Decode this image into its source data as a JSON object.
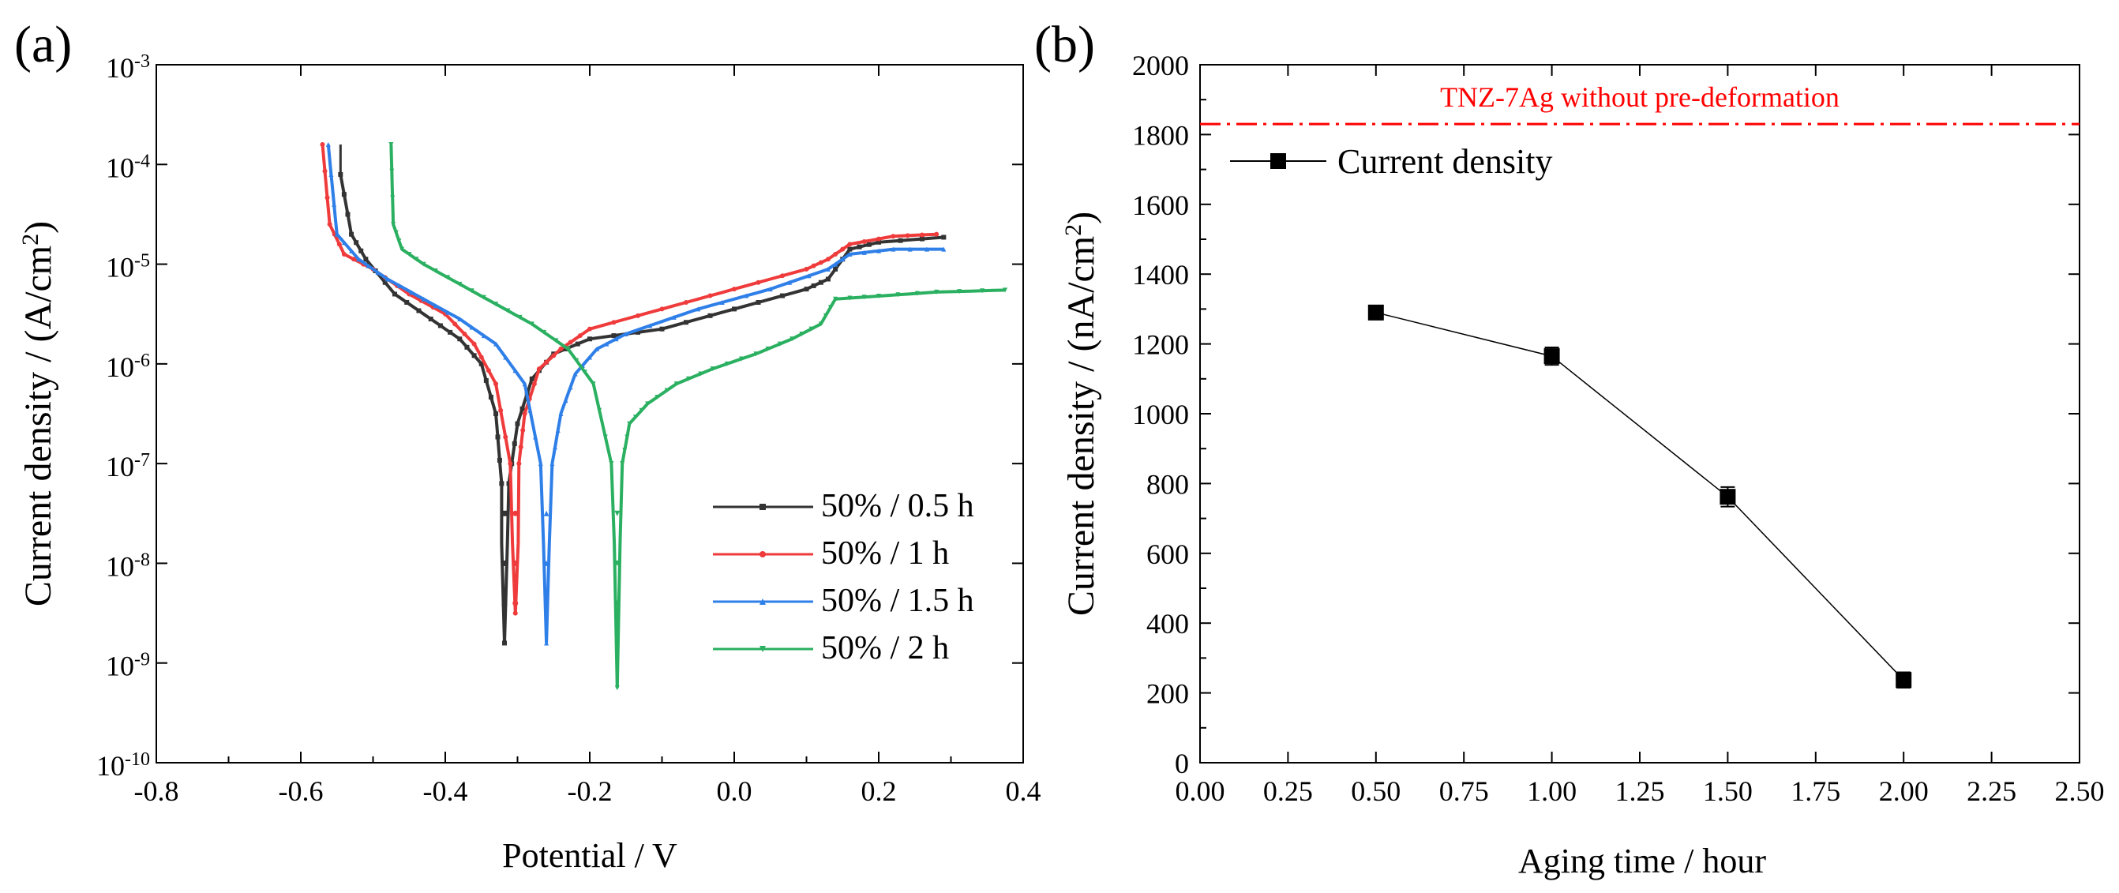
{
  "panels": {
    "a": {
      "label": "(a)"
    },
    "b": {
      "label": "(b)"
    }
  },
  "colors": {
    "black": "#333333",
    "red": "#ef3b3b",
    "blue": "#2f7fe8",
    "green": "#2ab060",
    "reference": "#ff0000"
  },
  "chart_data": [
    {
      "id": "a",
      "type": "line",
      "title": "",
      "xlabel": "Potential / V",
      "ylabel_prefix": "Current density / (A/cm",
      "ylabel_sup": "2",
      "ylabel_suffix": ")",
      "xlim": [
        -0.8,
        0.4
      ],
      "ylim_log10": [
        -10,
        -3
      ],
      "yscale": "log",
      "xticks": [
        -0.8,
        -0.6,
        -0.4,
        -0.2,
        0.0,
        0.2,
        0.4
      ],
      "xtick_labels": [
        "-0.8",
        "-0.6",
        "-0.4",
        "-0.2",
        "0.0",
        "0.2",
        "0.4"
      ],
      "yticks_exp": [
        -10,
        -9,
        -8,
        -7,
        -6,
        -5,
        -4,
        -3
      ],
      "ytick_labels": [
        {
          "base": "10",
          "exp": "-10"
        },
        {
          "base": "10",
          "exp": "-9"
        },
        {
          "base": "10",
          "exp": "-8"
        },
        {
          "base": "10",
          "exp": "-7"
        },
        {
          "base": "10",
          "exp": "-6"
        },
        {
          "base": "10",
          "exp": "-5"
        },
        {
          "base": "10",
          "exp": "-4"
        },
        {
          "base": "10",
          "exp": "-3"
        }
      ],
      "legend_position": "bottom-right",
      "series": [
        {
          "name": "50% / 0.5 h",
          "color_key": "black",
          "marker": "square",
          "start": -0.545,
          "corr": -0.318,
          "end": 0.13,
          "logI_corr": -8.8,
          "cathodic": [
            [
              -0.545,
              -4.1
            ],
            [
              -0.53,
              -4.7
            ],
            [
              -0.51,
              -4.95
            ],
            [
              -0.47,
              -5.3
            ],
            [
              -0.42,
              -5.55
            ],
            [
              -0.38,
              -5.75
            ],
            [
              -0.35,
              -6.0
            ],
            [
              -0.33,
              -6.5
            ],
            [
              -0.322,
              -7.2
            ]
          ],
          "anodic": [
            [
              -0.312,
              -7.2
            ],
            [
              -0.3,
              -6.6
            ],
            [
              -0.28,
              -6.15
            ],
            [
              -0.25,
              -5.9
            ],
            [
              -0.2,
              -5.75
            ],
            [
              -0.1,
              -5.65
            ],
            [
              0.0,
              -5.45
            ],
            [
              0.1,
              -5.25
            ],
            [
              0.13,
              -5.15
            ]
          ],
          "tail": [
            [
              0.13,
              -5.15
            ],
            [
              0.16,
              -4.85
            ],
            [
              0.2,
              -4.78
            ],
            [
              0.29,
              -4.73
            ]
          ]
        },
        {
          "name": "50% / 1 h",
          "color_key": "red",
          "marker": "circle",
          "start": -0.57,
          "corr": -0.303,
          "end": 0.28,
          "logI_corr": -8.5,
          "cathodic": [
            [
              -0.57,
              -3.8
            ],
            [
              -0.56,
              -4.6
            ],
            [
              -0.54,
              -4.9
            ],
            [
              -0.5,
              -5.05
            ],
            [
              -0.45,
              -5.3
            ],
            [
              -0.4,
              -5.5
            ],
            [
              -0.36,
              -5.8
            ],
            [
              -0.33,
              -6.2
            ],
            [
              -0.31,
              -7.0
            ]
          ],
          "anodic": [
            [
              -0.298,
              -7.0
            ],
            [
              -0.29,
              -6.5
            ],
            [
              -0.27,
              -6.05
            ],
            [
              -0.24,
              -5.85
            ],
            [
              -0.2,
              -5.65
            ],
            [
              -0.1,
              -5.45
            ],
            [
              0.0,
              -5.25
            ],
            [
              0.1,
              -5.05
            ],
            [
              0.13,
              -4.95
            ]
          ],
          "tail": [
            [
              0.13,
              -4.95
            ],
            [
              0.16,
              -4.8
            ],
            [
              0.22,
              -4.72
            ],
            [
              0.28,
              -4.7
            ]
          ]
        },
        {
          "name": "50% / 1.5 h",
          "color_key": "blue",
          "marker": "triangle-up",
          "start": -0.562,
          "corr": -0.26,
          "end": 0.29,
          "logI_corr": -8.8,
          "cathodic": [
            [
              -0.562,
              -3.8
            ],
            [
              -0.55,
              -4.7
            ],
            [
              -0.52,
              -4.95
            ],
            [
              -0.48,
              -5.15
            ],
            [
              -0.43,
              -5.35
            ],
            [
              -0.38,
              -5.55
            ],
            [
              -0.33,
              -5.8
            ],
            [
              -0.29,
              -6.2
            ],
            [
              -0.268,
              -7.0
            ]
          ],
          "anodic": [
            [
              -0.252,
              -7.0
            ],
            [
              -0.24,
              -6.5
            ],
            [
              -0.22,
              -6.1
            ],
            [
              -0.19,
              -5.85
            ],
            [
              -0.15,
              -5.7
            ],
            [
              -0.05,
              -5.45
            ],
            [
              0.05,
              -5.25
            ],
            [
              0.13,
              -5.05
            ]
          ],
          "tail": [
            [
              0.13,
              -5.05
            ],
            [
              0.16,
              -4.9
            ],
            [
              0.22,
              -4.85
            ],
            [
              0.29,
              -4.85
            ]
          ]
        },
        {
          "name": "50% / 2 h",
          "color_key": "green",
          "marker": "triangle-down",
          "start": -0.475,
          "corr": -0.162,
          "end": 0.375,
          "logI_corr": -9.25,
          "cathodic": [
            [
              -0.475,
              -3.8
            ],
            [
              -0.472,
              -4.6
            ],
            [
              -0.46,
              -4.85
            ],
            [
              -0.43,
              -5.0
            ],
            [
              -0.38,
              -5.2
            ],
            [
              -0.33,
              -5.4
            ],
            [
              -0.28,
              -5.6
            ],
            [
              -0.23,
              -5.85
            ],
            [
              -0.195,
              -6.2
            ],
            [
              -0.17,
              -7.0
            ]
          ],
          "anodic": [
            [
              -0.155,
              -7.0
            ],
            [
              -0.145,
              -6.6
            ],
            [
              -0.12,
              -6.4
            ],
            [
              -0.08,
              -6.2
            ],
            [
              -0.03,
              -6.05
            ],
            [
              0.03,
              -5.9
            ],
            [
              0.08,
              -5.75
            ],
            [
              0.12,
              -5.6
            ]
          ],
          "tail": [
            [
              0.12,
              -5.6
            ],
            [
              0.14,
              -5.35
            ],
            [
              0.2,
              -5.32
            ],
            [
              0.28,
              -5.28
            ],
            [
              0.375,
              -5.26
            ]
          ]
        }
      ]
    },
    {
      "id": "b",
      "type": "line",
      "title": "",
      "xlabel": "Aging time / hour",
      "ylabel_prefix": "Current density / (nA/cm",
      "ylabel_sup": "2",
      "ylabel_suffix": ")",
      "xlim": [
        0.0,
        2.5
      ],
      "ylim": [
        0,
        2000
      ],
      "xticks": [
        0.0,
        0.25,
        0.5,
        0.75,
        1.0,
        1.25,
        1.5,
        1.75,
        2.0,
        2.25,
        2.5
      ],
      "xtick_labels": [
        "0.00",
        "0.25",
        "0.50",
        "0.75",
        "1.00",
        "1.25",
        "1.50",
        "1.75",
        "2.00",
        "2.25",
        "2.50"
      ],
      "yticks": [
        0,
        200,
        400,
        600,
        800,
        1000,
        1200,
        1400,
        1600,
        1800,
        2000
      ],
      "ytick_labels": [
        "0",
        "200",
        "400",
        "600",
        "800",
        "1000",
        "1200",
        "1400",
        "1600",
        "1800",
        "2000"
      ],
      "legend_position": "top-left",
      "series": [
        {
          "name": "Current density",
          "x": [
            0.5,
            1.0,
            1.5,
            2.0
          ],
          "y": [
            1290,
            1165,
            762,
            237
          ],
          "err": [
            20,
            25,
            28,
            22
          ]
        }
      ],
      "reference_line": {
        "value": 1830,
        "label": "TNZ-7Ag without pre-deformation"
      }
    }
  ]
}
